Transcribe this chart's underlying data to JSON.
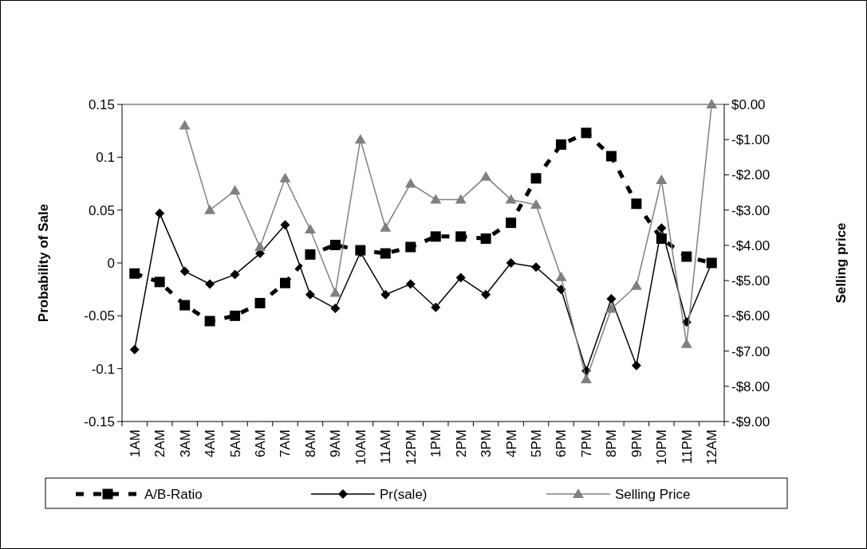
{
  "chart_data": {
    "type": "line",
    "ylabel": "Probability of Sale",
    "y2label": "Selling price",
    "categories": [
      "1AM",
      "2AM",
      "3AM",
      "4AM",
      "5AM",
      "6AM",
      "7AM",
      "8AM",
      "9AM",
      "10AM",
      "11AM",
      "12PM",
      "1PM",
      "2PM",
      "3PM",
      "4PM",
      "5PM",
      "6PM",
      "7PM",
      "8PM",
      "9PM",
      "10PM",
      "11PM",
      "12AM"
    ],
    "series": [
      {
        "name": "A/B-Ratio",
        "color": "#000000",
        "marker": "square",
        "line_style": "dashed",
        "values": [
          -0.01,
          -0.018,
          -0.04,
          -0.055,
          -0.05,
          -0.038,
          -0.019,
          0.008,
          0.017,
          0.012,
          0.009,
          0.015,
          0.025,
          0.025,
          0.023,
          0.038,
          0.08,
          0.112,
          0.123,
          0.101,
          0.056,
          0.023,
          0.006,
          0.0
        ]
      },
      {
        "name": "Pr(sale)",
        "color": "#000000",
        "marker": "diamond",
        "line_style": "solid",
        "values": [
          -0.082,
          0.047,
          -0.008,
          -0.02,
          -0.011,
          0.009,
          0.036,
          -0.03,
          -0.043,
          0.01,
          -0.03,
          -0.02,
          -0.042,
          -0.014,
          -0.03,
          0.0,
          -0.004,
          -0.025,
          -0.102,
          -0.034,
          -0.097,
          0.033,
          -0.056,
          0.0
        ]
      },
      {
        "name": "Selling Price",
        "color": "#808080",
        "marker": "triangle",
        "line_style": "solid",
        "axis": "y2",
        "values": [
          null,
          null,
          -0.6,
          -3.0,
          -2.45,
          -4.05,
          -2.1,
          -3.55,
          -5.35,
          -1.0,
          -3.5,
          -2.25,
          -2.7,
          -2.7,
          -2.05,
          -2.7,
          -2.85,
          -4.9,
          -7.8,
          -5.8,
          -5.15,
          -2.15,
          -6.8,
          0.0
        ]
      }
    ],
    "ylim": [
      -0.15,
      0.15
    ],
    "yticks": [
      -0.15,
      -0.1,
      -0.05,
      0,
      0.05,
      0.1,
      0.15
    ],
    "y2lim": [
      -9,
      0
    ],
    "y2ticks": [
      {
        "value": -9,
        "label": "-$9.00"
      },
      {
        "value": -8,
        "label": "-$8.00"
      },
      {
        "value": -7,
        "label": "-$7.00"
      },
      {
        "value": -6,
        "label": "-$6.00"
      },
      {
        "value": -5,
        "label": "-$5.00"
      },
      {
        "value": -4,
        "label": "-$4.00"
      },
      {
        "value": -3,
        "label": "-$3.00"
      },
      {
        "value": -2,
        "label": "-$2.00"
      },
      {
        "value": -1,
        "label": "-$1.00"
      },
      {
        "value": 0,
        "label": "$0.00"
      }
    ],
    "grid": false,
    "legend": "bottom"
  }
}
